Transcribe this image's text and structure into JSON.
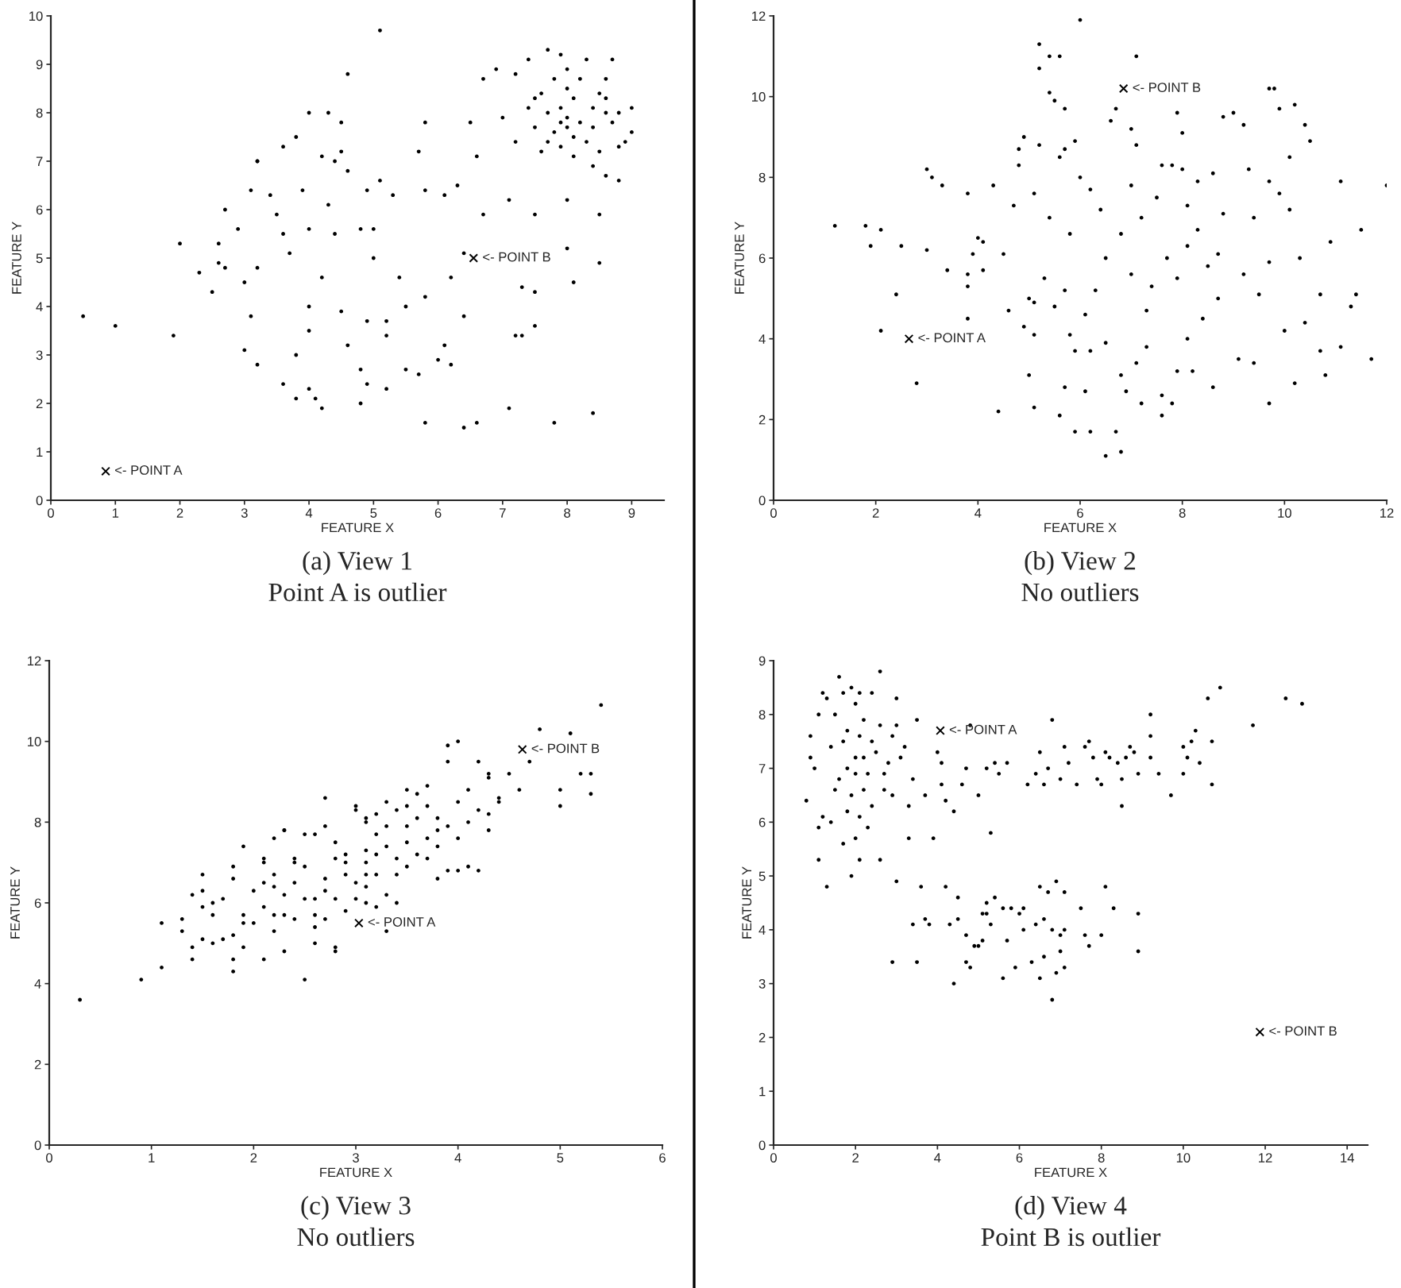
{
  "chart_data": [
    {
      "type": "scatter",
      "title": "(a) View 1",
      "subtitle": "Point A is outlier",
      "xlabel": "FEATURE X",
      "ylabel": "FEATURE Y",
      "xlim": [
        0,
        9.5
      ],
      "ylim": [
        0,
        10
      ],
      "xticks": [
        0,
        1,
        2,
        3,
        4,
        5,
        6,
        7,
        8,
        9
      ],
      "yticks": [
        0,
        1,
        2,
        3,
        4,
        5,
        6,
        7,
        8,
        9,
        10
      ],
      "marker": "circle",
      "annotations": [
        {
          "text": "<- POINT A",
          "x": 0.85,
          "y": 0.6
        },
        {
          "text": "<- POINT B",
          "x": 6.55,
          "y": 5.0
        }
      ],
      "series": [
        {
          "type": "scatter",
          "marker": "cross",
          "color": "#000000",
          "x": [
            0.85,
            6.55
          ],
          "values": [
            0.6,
            5.0
          ]
        },
        {
          "color": "#000000",
          "x": [
            0.5,
            1.0,
            1.9,
            2.0,
            2.3,
            2.5,
            2.6,
            2.6,
            2.7,
            2.7,
            2.9,
            3.0,
            3.0,
            3.1,
            3.2,
            3.2,
            3.1,
            3.2,
            3.2,
            3.4,
            3.5,
            3.6,
            3.6,
            3.8,
            3.8,
            3.6,
            3.7,
            3.8,
            3.9,
            4.0,
            4.0,
            4.0,
            4.0,
            4.0,
            4.1,
            4.2,
            4.2,
            4.3,
            4.2,
            4.3,
            4.4,
            4.4,
            4.5,
            4.5,
            4.5,
            4.6,
            4.6,
            4.6,
            4.8,
            4.8,
            4.8,
            4.9,
            4.9,
            4.9,
            5.0,
            5.0,
            5.1,
            5.1,
            5.2,
            5.2,
            5.2,
            5.3,
            5.4,
            5.5,
            5.5,
            5.7,
            5.7,
            5.8,
            5.8,
            5.8,
            5.8,
            6.0,
            6.1,
            6.1,
            6.2,
            6.2,
            6.3,
            6.4,
            6.4,
            6.4,
            6.5,
            6.6,
            6.6,
            6.7,
            6.7,
            6.9,
            7.1,
            7.1,
            7.2,
            7.3,
            7.3,
            7.5,
            7.5,
            7.5,
            7.8,
            8.0,
            8.0,
            8.1,
            8.4,
            8.5,
            8.5,
            8.6,
            8.8,
            7.0,
            7.2,
            7.2,
            7.4,
            7.4,
            7.5,
            7.6,
            7.6,
            7.7,
            7.7,
            7.8,
            7.8,
            7.9,
            7.9,
            7.9,
            8.0,
            8.0,
            8.0,
            8.1,
            8.1,
            8.1,
            8.2,
            8.2,
            8.3,
            8.3,
            8.4,
            8.4,
            8.5,
            8.5,
            8.6,
            8.6,
            8.7,
            8.7,
            8.8,
            8.8,
            8.9,
            9.0,
            9.0,
            8.4,
            7.7,
            7.5,
            7.9,
            8.0,
            8.6
          ],
          "values": [
            3.8,
            3.6,
            3.4,
            5.3,
            4.7,
            4.3,
            4.9,
            5.3,
            6.0,
            4.8,
            5.6,
            4.5,
            3.1,
            6.4,
            7.0,
            7.0,
            3.8,
            2.8,
            4.8,
            6.3,
            5.9,
            7.3,
            2.4,
            2.1,
            3.0,
            5.5,
            5.1,
            7.5,
            6.4,
            5.6,
            4.0,
            3.5,
            8.0,
            2.3,
            2.1,
            1.9,
            7.1,
            8.0,
            4.6,
            6.1,
            5.5,
            7.0,
            7.2,
            7.8,
            3.9,
            6.8,
            3.2,
            8.8,
            5.6,
            2.0,
            2.7,
            2.4,
            6.4,
            3.7,
            5.0,
            5.6,
            9.7,
            6.6,
            2.3,
            3.7,
            3.4,
            6.3,
            4.6,
            4.0,
            2.7,
            7.2,
            2.6,
            7.8,
            1.6,
            6.4,
            4.2,
            2.9,
            6.3,
            3.2,
            2.8,
            4.6,
            6.5,
            3.8,
            1.5,
            5.1,
            7.8,
            7.1,
            1.6,
            5.9,
            8.7,
            8.9,
            6.2,
            1.9,
            3.4,
            3.4,
            4.4,
            3.6,
            4.3,
            5.9,
            1.6,
            6.2,
            5.2,
            4.5,
            1.8,
            4.9,
            5.9,
            6.7,
            6.6,
            7.9,
            7.4,
            8.8,
            9.1,
            8.1,
            7.7,
            8.4,
            7.2,
            9.3,
            8.0,
            7.6,
            8.7,
            7.3,
            8.1,
            9.2,
            7.7,
            8.5,
            7.9,
            7.1,
            7.5,
            8.3,
            8.7,
            7.8,
            9.1,
            7.4,
            8.1,
            7.7,
            8.4,
            7.2,
            8.0,
            8.7,
            9.1,
            7.8,
            7.3,
            8.0,
            7.4,
            8.1,
            7.6,
            6.9,
            7.4,
            8.3,
            7.8,
            8.9,
            8.3
          ]
        }
      ]
    },
    {
      "type": "scatter",
      "title": "(b) View 2",
      "subtitle": "No outliers",
      "xlabel": "FEATURE X",
      "ylabel": "FEATURE Y",
      "xlim": [
        0,
        12
      ],
      "ylim": [
        0,
        12
      ],
      "xticks": [
        0,
        2,
        4,
        6,
        8,
        10,
        12
      ],
      "yticks": [
        0,
        2,
        4,
        6,
        8,
        10,
        12
      ],
      "marker": "circle",
      "annotations": [
        {
          "text": "<- POINT A",
          "x": 2.65,
          "y": 4.0
        },
        {
          "text": "<- POINT B",
          "x": 6.85,
          "y": 10.2
        }
      ],
      "series": [
        {
          "type": "scatter",
          "marker": "cross",
          "color": "#000000",
          "x": [
            2.65,
            6.85
          ],
          "values": [
            4.0,
            10.2
          ]
        },
        {
          "color": "#000000",
          "x": [
            1.2,
            1.8,
            1.9,
            2.1,
            2.1,
            2.4,
            2.5,
            2.8,
            3.0,
            3.0,
            3.1,
            3.3,
            3.4,
            3.8,
            3.8,
            3.8,
            3.8,
            3.9,
            4.0,
            4.1,
            4.1,
            4.3,
            4.4,
            4.5,
            4.6,
            4.7,
            4.8,
            4.8,
            4.9,
            4.9,
            5.0,
            5.0,
            5.1,
            5.1,
            5.1,
            5.1,
            5.2,
            5.2,
            5.2,
            5.3,
            5.4,
            5.4,
            5.4,
            5.5,
            5.5,
            5.6,
            5.6,
            5.6,
            5.7,
            5.7,
            5.7,
            5.7,
            5.8,
            5.8,
            5.9,
            5.9,
            5.9,
            6.0,
            6.0,
            6.1,
            6.1,
            6.2,
            6.2,
            6.2,
            6.3,
            6.4,
            6.5,
            6.5,
            6.5,
            6.6,
            6.7,
            6.7,
            6.8,
            6.8,
            6.8,
            6.9,
            7.0,
            7.0,
            7.0,
            7.1,
            7.1,
            7.1,
            7.2,
            7.2,
            7.3,
            7.3,
            7.4,
            7.5,
            7.6,
            7.6,
            7.6,
            7.7,
            7.8,
            7.8,
            7.9,
            7.9,
            7.9,
            8.0,
            8.0,
            8.1,
            8.1,
            8.1,
            8.2,
            8.3,
            8.3,
            8.4,
            8.5,
            8.6,
            8.6,
            8.7,
            8.7,
            8.8,
            8.8,
            9.0,
            9.1,
            9.2,
            9.2,
            9.3,
            9.4,
            9.4,
            9.5,
            9.7,
            9.7,
            9.7,
            9.7,
            9.8,
            9.9,
            9.9,
            10.0,
            10.1,
            10.1,
            10.2,
            10.2,
            10.3,
            10.4,
            10.4,
            10.5,
            10.7,
            10.7,
            10.8,
            10.9,
            11.1,
            11.1,
            11.3,
            11.4,
            11.5,
            11.7,
            12.0
          ],
          "values": [
            6.8,
            6.8,
            6.3,
            6.7,
            4.2,
            5.1,
            6.3,
            2.9,
            8.2,
            6.2,
            8.0,
            7.8,
            5.7,
            7.6,
            5.6,
            4.5,
            5.3,
            6.1,
            6.5,
            6.4,
            5.7,
            7.8,
            2.2,
            6.1,
            4.7,
            7.3,
            8.7,
            8.3,
            4.3,
            9.0,
            3.1,
            5.0,
            4.1,
            2.3,
            4.9,
            7.6,
            10.7,
            11.3,
            8.8,
            5.5,
            11.0,
            10.1,
            7.0,
            9.9,
            4.8,
            8.5,
            11.0,
            2.1,
            2.8,
            5.2,
            8.7,
            9.7,
            4.1,
            6.6,
            8.9,
            1.7,
            3.7,
            8.0,
            11.9,
            4.6,
            2.7,
            7.7,
            3.7,
            1.7,
            5.2,
            7.2,
            1.1,
            3.9,
            6.0,
            9.4,
            1.7,
            9.7,
            1.2,
            3.1,
            6.6,
            2.7,
            7.8,
            9.2,
            5.6,
            8.8,
            3.4,
            11.0,
            2.4,
            7.0,
            4.7,
            3.8,
            5.3,
            7.5,
            2.1,
            2.6,
            8.3,
            6.0,
            8.3,
            2.4,
            3.2,
            5.5,
            9.6,
            9.1,
            8.2,
            4.0,
            6.3,
            7.3,
            3.2,
            6.7,
            7.9,
            4.5,
            5.8,
            8.1,
            2.8,
            6.1,
            5.0,
            9.5,
            7.1,
            9.6,
            3.5,
            5.6,
            9.3,
            8.2,
            3.4,
            7.0,
            5.1,
            10.2,
            2.4,
            5.9,
            7.9,
            10.2,
            7.6,
            9.7,
            4.2,
            8.5,
            7.2,
            2.9,
            9.8,
            6.0,
            4.4,
            9.3,
            8.9,
            5.1,
            3.7,
            3.1,
            6.4,
            3.8,
            7.9,
            4.8,
            5.1,
            6.7,
            3.5,
            7.8
          ]
        }
      ]
    },
    {
      "type": "scatter",
      "title": "(c) View 3",
      "subtitle": "No outliers",
      "xlabel": "FEATURE X",
      "ylabel": "FEATURE Y",
      "xlim": [
        0,
        6
      ],
      "ylim": [
        0,
        12
      ],
      "xticks": [
        0,
        1,
        2,
        3,
        4,
        5,
        6
      ],
      "yticks": [
        0,
        2,
        4,
        6,
        8,
        10,
        12
      ],
      "marker": "circle",
      "annotations": [
        {
          "text": "<- POINT A",
          "x": 3.03,
          "y": 5.5
        },
        {
          "text": "<- POINT B",
          "x": 4.63,
          "y": 9.8
        }
      ],
      "series": [
        {
          "type": "scatter",
          "marker": "cross",
          "color": "#000000",
          "x": [
            3.03,
            4.63
          ],
          "values": [
            5.5,
            9.8
          ]
        },
        {
          "color": "#000000",
          "x": [
            0.3,
            0.9,
            1.1,
            1.1,
            1.3,
            1.3,
            1.4,
            1.4,
            1.4,
            1.5,
            1.5,
            1.5,
            1.5,
            1.6,
            1.6,
            1.6,
            1.7,
            1.7,
            1.8,
            1.8,
            1.8,
            1.8,
            1.8,
            1.9,
            1.9,
            1.9,
            1.9,
            2.0,
            2.0,
            2.1,
            2.1,
            2.1,
            2.1,
            2.1,
            2.2,
            2.2,
            2.2,
            2.2,
            2.2,
            2.3,
            2.3,
            2.3,
            2.3,
            2.3,
            2.4,
            2.4,
            2.4,
            2.4,
            2.5,
            2.5,
            2.5,
            2.5,
            2.6,
            2.6,
            2.6,
            2.6,
            2.6,
            2.7,
            2.7,
            2.7,
            2.7,
            2.7,
            2.8,
            2.8,
            2.8,
            2.8,
            2.8,
            2.9,
            2.9,
            2.9,
            2.9,
            3.0,
            3.0,
            3.0,
            3.0,
            3.1,
            3.1,
            3.1,
            3.1,
            3.1,
            3.1,
            3.1,
            3.2,
            3.2,
            3.2,
            3.2,
            3.2,
            3.3,
            3.3,
            3.3,
            3.3,
            3.3,
            3.4,
            3.4,
            3.4,
            3.4,
            3.5,
            3.5,
            3.5,
            3.5,
            3.5,
            3.6,
            3.6,
            3.6,
            3.7,
            3.7,
            3.7,
            3.7,
            3.8,
            3.8,
            3.8,
            3.8,
            3.9,
            3.9,
            3.9,
            3.9,
            4.0,
            4.0,
            4.0,
            4.0,
            4.1,
            4.1,
            4.1,
            4.2,
            4.2,
            4.2,
            4.3,
            4.3,
            4.3,
            4.3,
            4.4,
            4.4,
            4.5,
            4.6,
            4.7,
            4.8,
            5.0,
            5.0,
            5.1,
            5.2,
            5.3,
            5.3,
            5.4
          ],
          "values": [
            3.6,
            4.1,
            4.4,
            5.5,
            5.3,
            5.6,
            4.9,
            4.6,
            6.2,
            5.9,
            6.7,
            5.1,
            6.3,
            5.7,
            5.0,
            6.0,
            6.1,
            5.1,
            6.6,
            5.2,
            4.6,
            4.3,
            6.9,
            5.7,
            5.5,
            7.4,
            4.9,
            6.3,
            5.5,
            7.1,
            5.9,
            7.0,
            6.5,
            4.6,
            5.7,
            6.4,
            5.3,
            7.6,
            6.7,
            4.8,
            7.8,
            5.7,
            7.8,
            6.2,
            7.0,
            5.6,
            6.5,
            7.1,
            6.1,
            4.1,
            7.7,
            6.9,
            5.7,
            5.0,
            6.1,
            7.7,
            5.4,
            6.6,
            5.6,
            7.9,
            8.6,
            6.3,
            7.1,
            4.9,
            4.8,
            6.1,
            7.5,
            6.7,
            7.0,
            5.8,
            7.2,
            6.5,
            8.3,
            6.1,
            8.4,
            7.0,
            8.0,
            6.4,
            6.0,
            7.3,
            8.1,
            6.7,
            7.7,
            7.2,
            6.7,
            8.2,
            5.9,
            5.3,
            7.4,
            8.5,
            7.9,
            6.2,
            7.1,
            8.3,
            6.7,
            6.0,
            7.9,
            8.8,
            6.9,
            8.4,
            7.5,
            8.7,
            7.2,
            8.1,
            7.6,
            8.4,
            8.9,
            7.1,
            6.6,
            7.8,
            8.1,
            7.4,
            6.8,
            9.9,
            9.5,
            7.9,
            6.8,
            8.5,
            7.6,
            10.0,
            6.9,
            8.0,
            8.8,
            9.5,
            6.8,
            8.3,
            9.1,
            8.2,
            7.8,
            9.2,
            8.6,
            8.5,
            9.2,
            8.8,
            9.5,
            10.3,
            8.8,
            8.4,
            10.2,
            9.2,
            9.2,
            8.7,
            10.9
          ]
        }
      ]
    },
    {
      "type": "scatter",
      "title": "(d) View 4",
      "subtitle": "Point B is outlier",
      "xlabel": "FEATURE X",
      "ylabel": "FEATURE Y",
      "xlim": [
        0,
        14.5
      ],
      "ylim": [
        0,
        9
      ],
      "xticks": [
        0,
        2,
        4,
        6,
        8,
        10,
        12,
        14
      ],
      "yticks": [
        0,
        1,
        2,
        3,
        4,
        5,
        6,
        7,
        8,
        9
      ],
      "marker": "circle",
      "annotations": [
        {
          "text": "<- POINT A",
          "x": 4.07,
          "y": 7.7
        },
        {
          "text": "<- POINT B",
          "x": 11.87,
          "y": 2.1
        }
      ],
      "series": [
        {
          "type": "scatter",
          "marker": "cross",
          "color": "#000000",
          "x": [
            4.07,
            11.87
          ],
          "values": [
            7.7,
            2.1
          ]
        },
        {
          "color": "#000000",
          "x": [
            0.8,
            0.9,
            0.9,
            1.0,
            1.1,
            1.1,
            1.1,
            1.2,
            1.2,
            1.3,
            1.3,
            1.4,
            1.4,
            1.5,
            1.5,
            1.6,
            1.6,
            1.7,
            1.7,
            1.7,
            1.8,
            1.8,
            1.8,
            1.9,
            1.9,
            1.9,
            2.0,
            2.0,
            2.0,
            2.0,
            2.1,
            2.1,
            2.1,
            2.1,
            2.2,
            2.2,
            2.2,
            2.3,
            2.3,
            2.4,
            2.4,
            2.4,
            2.5,
            2.6,
            2.6,
            2.6,
            2.7,
            2.7,
            2.8,
            2.9,
            2.9,
            2.9,
            3.0,
            3.0,
            3.0,
            3.1,
            3.2,
            3.3,
            3.3,
            3.4,
            3.4,
            3.5,
            3.5,
            3.6,
            3.7,
            3.7,
            3.8,
            3.9,
            4.0,
            4.1,
            4.1,
            4.2,
            4.2,
            4.3,
            4.4,
            4.4,
            4.5,
            4.5,
            4.6,
            4.7,
            4.7,
            4.7,
            4.8,
            4.8,
            4.9,
            5.0,
            5.0,
            5.1,
            5.1,
            5.2,
            5.2,
            5.2,
            5.3,
            5.3,
            5.4,
            5.4,
            5.5,
            5.6,
            5.6,
            5.7,
            5.7,
            5.8,
            5.9,
            6.0,
            6.1,
            6.1,
            6.2,
            6.3,
            6.4,
            6.4,
            6.5,
            6.5,
            6.5,
            6.6,
            6.6,
            6.6,
            6.7,
            6.7,
            6.8,
            6.8,
            6.8,
            6.9,
            6.9,
            7.0,
            7.0,
            7.0,
            7.1,
            7.1,
            7.1,
            7.1,
            7.2,
            7.4,
            7.5,
            7.6,
            7.6,
            7.7,
            7.7,
            7.8,
            7.9,
            8.0,
            8.0,
            8.1,
            8.1,
            8.2,
            8.3,
            8.4,
            8.5,
            8.5,
            8.6,
            8.7,
            8.8,
            8.9,
            8.9,
            8.9,
            9.2,
            9.2,
            9.2,
            9.4,
            9.7,
            10.0,
            10.0,
            10.1,
            10.2,
            10.3,
            10.4,
            10.6,
            10.7,
            10.7,
            10.9,
            11.7,
            12.5,
            12.9
          ],
          "values": [
            6.4,
            7.6,
            7.2,
            7.0,
            8.0,
            5.3,
            5.9,
            8.4,
            6.1,
            8.3,
            4.8,
            7.4,
            6.0,
            6.6,
            8.0,
            8.7,
            6.8,
            7.5,
            8.4,
            5.6,
            7.0,
            6.2,
            7.7,
            8.5,
            6.5,
            5.0,
            7.2,
            5.7,
            8.2,
            6.9,
            6.1,
            5.3,
            7.6,
            8.4,
            6.6,
            7.2,
            7.9,
            5.9,
            6.9,
            7.5,
            8.4,
            6.3,
            7.3,
            5.3,
            7.8,
            8.8,
            6.9,
            6.6,
            7.1,
            3.4,
            7.6,
            6.5,
            7.8,
            8.3,
            4.9,
            7.2,
            7.4,
            5.7,
            6.3,
            4.1,
            6.8,
            3.4,
            7.9,
            4.8,
            6.5,
            4.2,
            4.1,
            5.7,
            7.3,
            6.7,
            7.1,
            4.8,
            6.4,
            4.1,
            6.2,
            3.0,
            4.6,
            4.2,
            6.7,
            3.9,
            3.4,
            7.0,
            7.8,
            3.3,
            3.7,
            6.5,
            3.7,
            4.3,
            3.8,
            4.5,
            7.0,
            4.3,
            4.1,
            5.8,
            4.6,
            7.1,
            6.9,
            4.4,
            3.1,
            7.1,
            3.8,
            4.4,
            3.3,
            4.3,
            4.4,
            4.0,
            6.7,
            3.4,
            4.1,
            6.9,
            3.1,
            7.3,
            4.8,
            3.5,
            4.2,
            6.7,
            4.7,
            7.0,
            2.7,
            7.9,
            4.0,
            3.2,
            4.9,
            3.9,
            6.8,
            3.6,
            3.3,
            4.0,
            7.4,
            4.7,
            7.1,
            6.7,
            4.4,
            7.4,
            3.9,
            7.5,
            3.7,
            7.2,
            6.8,
            6.7,
            3.9,
            4.8,
            7.3,
            7.2,
            4.4,
            7.1,
            6.8,
            6.3,
            7.2,
            7.4,
            7.3,
            3.6,
            4.3,
            6.9,
            8.0,
            7.6,
            7.2,
            6.9,
            6.5,
            7.4,
            6.9,
            7.2,
            7.5,
            7.7,
            7.1,
            8.3,
            7.5,
            6.7,
            8.5,
            7.8,
            8.3,
            8.2
          ]
        }
      ]
    }
  ]
}
